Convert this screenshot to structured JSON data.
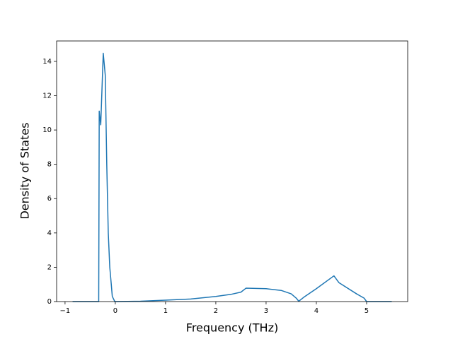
{
  "chart_data": {
    "type": "line",
    "xlabel": "Frequency (THz)",
    "ylabel": "Density of States",
    "x": [
      -0.85,
      -0.33,
      -0.32,
      -0.29,
      -0.24,
      -0.2,
      -0.17,
      -0.14,
      -0.11,
      -0.08,
      -0.06,
      -0.01,
      0.5,
      1,
      1.5,
      2,
      2.3,
      2.5,
      2.6,
      3,
      3.3,
      3.5,
      3.6,
      3.65,
      3.75,
      4,
      4.35,
      4.45,
      4.8,
      4.95,
      5,
      5.5
    ],
    "series": [
      {
        "color": "#1f77b4",
        "values": [
          0,
          0,
          11.1,
          10.3,
          14.47,
          13.2,
          8,
          4,
          2,
          1,
          0.3,
          0,
          0.02,
          0.08,
          0.15,
          0.3,
          0.42,
          0.55,
          0.78,
          0.75,
          0.65,
          0.45,
          0.2,
          0.02,
          0.25,
          0.75,
          1.5,
          1.1,
          0.45,
          0.2,
          0,
          0
        ]
      }
    ],
    "xlim": [
      -1.1675,
      5.8175
    ],
    "ylim": [
      0,
      15.19
    ],
    "xticks": [
      {
        "value": -1,
        "label": "−1"
      },
      0,
      1,
      2,
      3,
      4,
      5
    ],
    "yticks": [
      0,
      2,
      4,
      6,
      8,
      10,
      12,
      14
    ]
  }
}
